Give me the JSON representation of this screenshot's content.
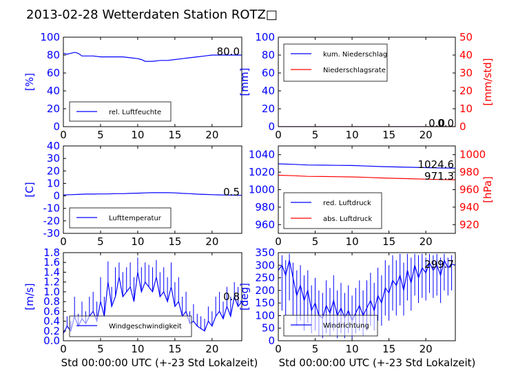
{
  "title": "2013-02-28 Wetterdaten Station ROTZ",
  "title_glyph": "□",
  "xlabel": "Std 00:00:00 UTC (+-23 Std Lokalzeit)",
  "colors": {
    "left_axis": "#0000ff",
    "right_axis": "#ff0000",
    "series_blue": "#0000ff",
    "series_red": "#ff0000"
  },
  "chart_data": [
    {
      "type": "line",
      "id": "humidity",
      "ylabel": "[%]",
      "xlim": [
        0,
        24
      ],
      "ylim": [
        0,
        100
      ],
      "xticks": [
        0,
        5,
        10,
        15,
        20
      ],
      "yticks": [
        0,
        20,
        40,
        60,
        80,
        100
      ],
      "legend": {
        "placement": "lower-left"
      },
      "readouts": [
        "80.0"
      ],
      "series": [
        {
          "name": "rel. Luftfeuchte",
          "color": "#0000ff",
          "axis": "left",
          "x": [
            0,
            0.5,
            1,
            1.5,
            2,
            2.5,
            3,
            4,
            5,
            6,
            7,
            8,
            9,
            10,
            10.5,
            11,
            11.5,
            12,
            13,
            14,
            15,
            16,
            17,
            18,
            19,
            20,
            21,
            22,
            23,
            24
          ],
          "y": [
            82,
            81,
            82,
            83,
            82,
            79,
            79,
            79,
            78,
            78,
            78,
            78,
            77,
            76,
            75,
            73,
            73,
            73,
            74,
            74,
            75,
            76,
            77,
            78,
            79,
            80,
            80,
            80,
            80,
            80
          ]
        }
      ]
    },
    {
      "type": "line",
      "id": "precip",
      "ylabel": "[mm]",
      "ylabel_right": "[mm/std]",
      "xlim": [
        0,
        24
      ],
      "ylim": [
        0,
        100
      ],
      "ylim_right": [
        0,
        50
      ],
      "xticks": [
        0,
        5,
        10,
        15,
        20
      ],
      "yticks": [
        0,
        20,
        40,
        60,
        80,
        100
      ],
      "yticks_right": [
        0,
        10,
        20,
        30,
        40,
        50
      ],
      "legend": {
        "placement": "upper-left"
      },
      "readouts": [
        "0.0",
        "0.0"
      ],
      "series": [
        {
          "name": "kum. Niederschlag",
          "color": "#0000ff",
          "axis": "left",
          "x": [
            0,
            24
          ],
          "y": [
            0,
            0
          ]
        },
        {
          "name": "Niederschlagsrate",
          "color": "#ff0000",
          "axis": "right",
          "x": [
            0,
            24
          ],
          "y": [
            0,
            0
          ]
        }
      ]
    },
    {
      "type": "line",
      "id": "temperature",
      "ylabel": "[C]",
      "xlim": [
        0,
        24
      ],
      "ylim": [
        -30,
        40
      ],
      "xticks": [
        0,
        5,
        10,
        15,
        20
      ],
      "yticks": [
        -30,
        -20,
        -10,
        0,
        10,
        20,
        30,
        40
      ],
      "legend": {
        "placement": "lower-left"
      },
      "readouts": [
        "0.5"
      ],
      "series": [
        {
          "name": "Lufttemperatur",
          "color": "#0000ff",
          "axis": "left",
          "x": [
            0,
            1,
            2,
            3,
            4,
            5,
            6,
            7,
            8,
            9,
            10,
            11,
            12,
            13,
            14,
            15,
            16,
            17,
            18,
            19,
            20,
            21,
            22,
            23,
            24
          ],
          "y": [
            0.8,
            1.0,
            1.2,
            1.5,
            1.5,
            1.6,
            1.6,
            1.8,
            1.8,
            2.0,
            2.2,
            2.4,
            2.6,
            2.6,
            2.6,
            2.4,
            2.0,
            1.8,
            1.4,
            1.2,
            1.0,
            0.8,
            0.7,
            0.6,
            0.5
          ]
        }
      ]
    },
    {
      "type": "line",
      "id": "pressure",
      "ylabel_right": "[hPa]",
      "xlim": [
        0,
        24
      ],
      "ylim": [
        950,
        1050
      ],
      "ylim_right": [
        910,
        1010
      ],
      "xticks": [
        0,
        5,
        10,
        15,
        20
      ],
      "yticks": [
        960,
        980,
        1000,
        1020,
        1040
      ],
      "yticks_right": [
        920,
        940,
        960,
        980,
        1000
      ],
      "legend": {
        "placement": "lower-left"
      },
      "readouts": [
        "1024.6",
        "971.3"
      ],
      "series": [
        {
          "name": "red. Luftdruck",
          "color": "#0000ff",
          "axis": "left",
          "x": [
            0,
            2,
            4,
            6,
            8,
            10,
            12,
            14,
            16,
            18,
            20,
            22,
            24
          ],
          "y": [
            1029.5,
            1029,
            1028.2,
            1028,
            1027.8,
            1027.6,
            1027,
            1026.4,
            1026,
            1025.6,
            1025.2,
            1024.8,
            1024.6
          ]
        },
        {
          "name": "abs. Luftdruck",
          "color": "#ff0000",
          "axis": "right",
          "x": [
            0,
            2,
            4,
            6,
            8,
            10,
            12,
            14,
            16,
            18,
            20,
            22,
            24
          ],
          "y": [
            976.5,
            976,
            975.2,
            975,
            974.8,
            974.6,
            974,
            973.4,
            972.9,
            972.5,
            972,
            971.6,
            971.3
          ]
        }
      ]
    },
    {
      "type": "line",
      "id": "windspeed",
      "ylabel": "[m/s]",
      "xlim": [
        0,
        24
      ],
      "ylim": [
        0,
        1.8
      ],
      "xticks": [
        0,
        5,
        10,
        15,
        20
      ],
      "yticks": [
        0.0,
        0.2,
        0.4,
        0.6,
        0.8,
        1.0,
        1.2,
        1.4,
        1.6,
        1.8
      ],
      "legend": {
        "placement": "lower-left"
      },
      "readouts": [
        "0.8"
      ],
      "series": [
        {
          "name": "Windgeschwindigkeit",
          "color": "#0000ff",
          "axis": "left",
          "x": [
            0,
            0.5,
            1,
            1.5,
            2,
            2.5,
            3,
            3.5,
            4,
            4.5,
            5,
            5.5,
            6,
            6.5,
            7,
            7.5,
            8,
            8.5,
            9,
            9.5,
            10,
            10.5,
            11,
            11.5,
            12,
            12.5,
            13,
            13.5,
            14,
            14.5,
            15,
            15.5,
            16,
            16.5,
            17,
            17.5,
            18,
            18.5,
            19,
            19.5,
            20,
            20.5,
            21,
            21.5,
            22,
            22.5,
            23,
            23.5,
            24
          ],
          "y": [
            0.15,
            0.3,
            0.2,
            0.5,
            0.3,
            0.45,
            0.35,
            0.5,
            0.6,
            0.4,
            0.8,
            0.5,
            1.2,
            0.7,
            0.9,
            1.3,
            0.9,
            1.0,
            1.1,
            0.8,
            1.4,
            1.0,
            1.2,
            1.1,
            1.0,
            1.3,
            0.9,
            1.0,
            0.8,
            1.1,
            0.7,
            0.8,
            0.5,
            0.6,
            0.35,
            0.4,
            0.3,
            0.25,
            0.2,
            0.4,
            0.3,
            0.5,
            0.6,
            0.45,
            0.7,
            0.5,
            0.9,
            0.7,
            0.8
          ],
          "y_max": [
            0.3,
            0.5,
            0.4,
            0.9,
            0.55,
            0.8,
            0.6,
            0.9,
            1.0,
            0.8,
            1.3,
            0.9,
            1.62,
            1.1,
            1.5,
            1.6,
            1.4,
            1.5,
            1.6,
            1.3,
            1.7,
            1.5,
            1.6,
            1.55,
            1.5,
            1.65,
            1.4,
            1.5,
            1.3,
            1.6,
            1.2,
            1.3,
            0.9,
            1.0,
            0.6,
            0.75,
            0.55,
            0.5,
            0.45,
            0.7,
            0.6,
            0.9,
            1.0,
            0.8,
            1.1,
            0.9,
            1.2,
            1.1,
            1.0
          ]
        }
      ]
    },
    {
      "type": "line",
      "id": "winddir",
      "ylabel": "[deg]",
      "xlim": [
        0,
        24
      ],
      "ylim": [
        0,
        350
      ],
      "xticks": [
        0,
        5,
        10,
        15,
        20
      ],
      "yticks": [
        0,
        50,
        100,
        150,
        200,
        250,
        300,
        350
      ],
      "legend": {
        "placement": "lower-left"
      },
      "readouts": [
        "299.7"
      ],
      "series": [
        {
          "name": "Windrichtung",
          "color": "#0000ff",
          "axis": "left",
          "x": [
            0,
            0.5,
            1,
            1.5,
            2,
            2.5,
            3,
            3.5,
            4,
            4.5,
            5,
            5.5,
            6,
            6.5,
            7,
            7.5,
            8,
            8.5,
            9,
            9.5,
            10,
            10.5,
            11,
            11.5,
            12,
            12.5,
            13,
            13.5,
            14,
            14.5,
            15,
            15.5,
            16,
            16.5,
            17,
            17.5,
            18,
            18.5,
            19,
            19.5,
            20,
            20.5,
            21,
            21.5,
            22,
            22.5,
            23,
            23.5,
            24
          ],
          "y": [
            280,
            300,
            260,
            320,
            250,
            180,
            220,
            160,
            200,
            120,
            150,
            100,
            90,
            140,
            110,
            160,
            100,
            130,
            90,
            120,
            80,
            110,
            140,
            100,
            130,
            160,
            120,
            180,
            150,
            210,
            190,
            240,
            220,
            260,
            200,
            280,
            230,
            300,
            250,
            290,
            270,
            310,
            280,
            300,
            260,
            320,
            290,
            305,
            300
          ],
          "y_min": [
            150,
            120,
            100,
            160,
            100,
            60,
            80,
            40,
            70,
            30,
            40,
            20,
            10,
            30,
            20,
            40,
            10,
            30,
            10,
            30,
            10,
            30,
            40,
            20,
            40,
            60,
            40,
            80,
            60,
            100,
            80,
            120,
            100,
            140,
            100,
            160,
            120,
            180,
            150,
            170,
            160,
            190,
            170,
            180,
            150,
            200,
            180,
            200,
            220
          ],
          "y_max": [
            330,
            340,
            320,
            345,
            310,
            280,
            300,
            260,
            280,
            220,
            250,
            200,
            190,
            240,
            210,
            260,
            200,
            230,
            190,
            220,
            180,
            210,
            240,
            200,
            240,
            270,
            230,
            290,
            260,
            320,
            300,
            340,
            320,
            345,
            310,
            345,
            330,
            345,
            340,
            345,
            330,
            345,
            340,
            345,
            330,
            345,
            330,
            340,
            320
          ]
        }
      ]
    }
  ]
}
